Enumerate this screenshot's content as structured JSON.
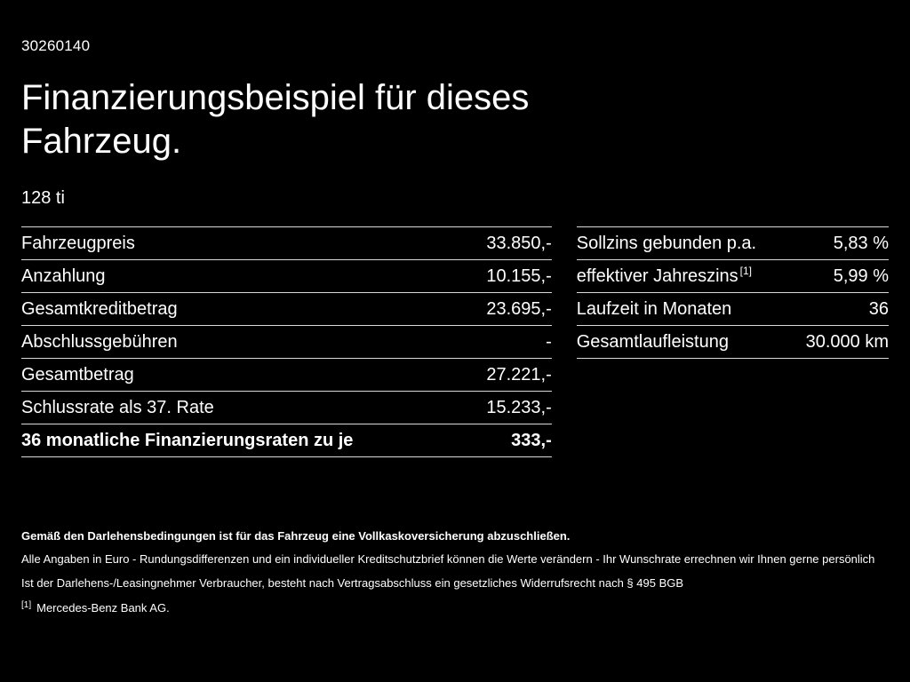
{
  "page": {
    "code": "30260140",
    "title": "Finanzierungsbeispiel für dieses Fahrzeug.",
    "model": "128 ti"
  },
  "finance_table": {
    "rows": [
      {
        "label": "Fahrzeugpreis",
        "value": "33.850,-"
      },
      {
        "label": "Anzahlung",
        "value": "10.155,-"
      },
      {
        "label": "Gesamtkreditbetrag",
        "value": "23.695,-"
      },
      {
        "label": "Abschlussgebühren",
        "value": "-"
      },
      {
        "label": "Gesamtbetrag",
        "value": "27.221,-"
      },
      {
        "label": "Schlussrate als 37. Rate",
        "value": "15.233,-"
      },
      {
        "label": "36 monatliche Finanzierungsraten zu je",
        "value": "333,-"
      }
    ]
  },
  "conditions_table": {
    "rows": [
      {
        "label": "Sollzins gebunden p.a.",
        "value": "5,83 %"
      },
      {
        "label": "effektiver Jahreszins",
        "sup": "[1]",
        "value": "5,99 %"
      },
      {
        "label": "Laufzeit in Monaten",
        "value": "36"
      },
      {
        "label": "Gesamtlaufleistung",
        "value": "30.000 km"
      }
    ]
  },
  "footnotes": {
    "insurance": "Gemäß den Darlehensbedingungen ist für das Fahrzeug eine Vollkaskoversicherung abzuschließen.",
    "disclaimer": "Alle Angaben in Euro - Rundungsdifferenzen und ein individueller Kreditschutzbrief können die Werte verändern - Ihr Wunschrate errechnen wir Ihnen gerne persönlich",
    "withdrawal": "Ist der Darlehens-/Leasingnehmer Verbraucher, besteht nach Vertragsabschluss ein gesetzliches Widerrufsrecht nach § 495 BGB",
    "ref_marker": "[1]",
    "ref_text": "Mercedes-Benz Bank AG."
  }
}
